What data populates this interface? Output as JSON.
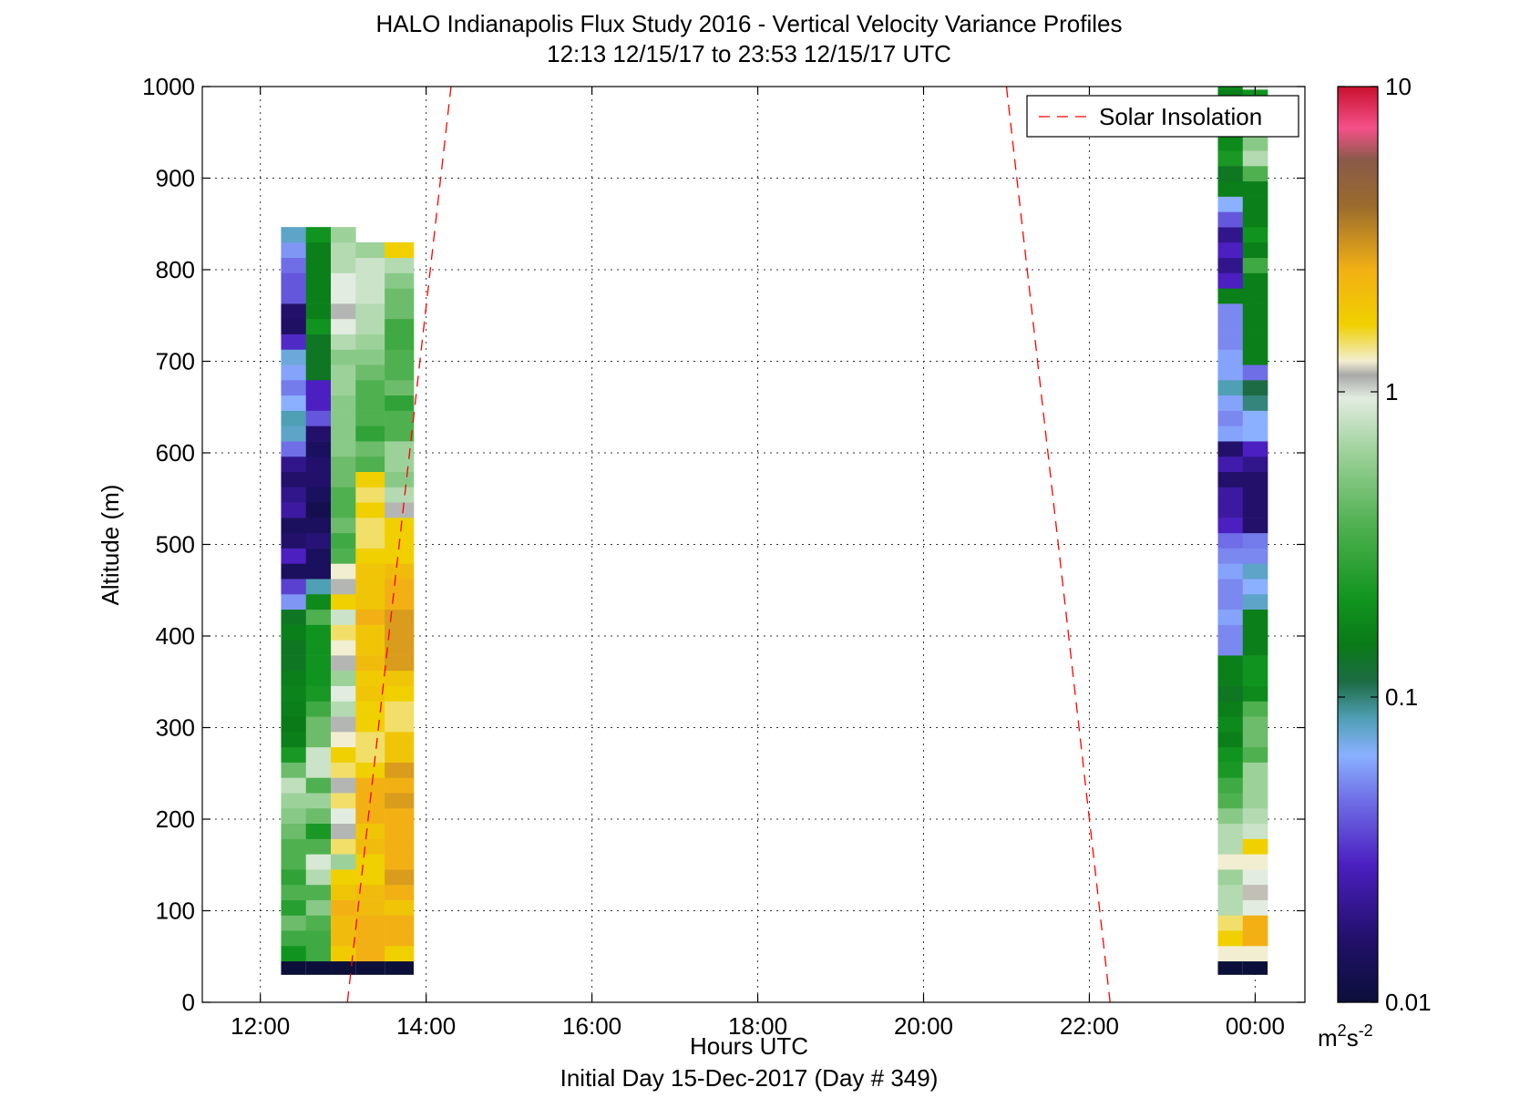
{
  "chart_data": {
    "type": "heatmap",
    "title": "HALO Indianapolis Flux Study 2016 - Vertical Velocity Variance Profiles",
    "subtitle": "12:13 12/15/17 to 23:53 12/15/17  UTC",
    "xlabel": "Hours UTC",
    "xlabel2": "Initial Day 15-Dec-2017 (Day # 349)",
    "ylabel": "Altitude (m)",
    "xlim": [
      11.3,
      24.6
    ],
    "ylim": [
      0,
      1000
    ],
    "x_ticks": [
      12,
      14,
      16,
      18,
      20,
      22,
      24
    ],
    "x_tick_labels": [
      "12:00",
      "14:00",
      "16:00",
      "18:00",
      "20:00",
      "22:00",
      "00:00"
    ],
    "y_ticks": [
      0,
      100,
      200,
      300,
      400,
      500,
      600,
      700,
      800,
      900,
      1000
    ],
    "y_tick_labels": [
      "0",
      "100",
      "200",
      "300",
      "400",
      "500",
      "600",
      "700",
      "800",
      "900",
      "1000"
    ],
    "grid": true,
    "legend": {
      "entries": [
        "Solar Insolation"
      ],
      "placement": "top-right"
    },
    "colorbar": {
      "scale": "log",
      "range": [
        0.01,
        10
      ],
      "ticks": [
        0.01,
        0.1,
        1,
        10
      ],
      "tick_labels": [
        "0.01",
        "0.1",
        "1",
        "10"
      ],
      "units_base": "m",
      "units_exp1": "2",
      "units_mid": "s",
      "units_exp2": "-2",
      "stops": [
        [
          0.0,
          "#0b0f3a"
        ],
        [
          0.07,
          "#22106b"
        ],
        [
          0.15,
          "#4b1fc0"
        ],
        [
          0.22,
          "#6f6ee6"
        ],
        [
          0.27,
          "#8ab0ff"
        ],
        [
          0.31,
          "#4f9fb5"
        ],
        [
          0.35,
          "#1d6b45"
        ],
        [
          0.39,
          "#0a7a18"
        ],
        [
          0.44,
          "#11941f"
        ],
        [
          0.52,
          "#4fb04f"
        ],
        [
          0.6,
          "#9dd19a"
        ],
        [
          0.66,
          "#e2ece0"
        ],
        [
          0.685,
          "#a8a8a8"
        ],
        [
          0.7,
          "#f2eed2"
        ],
        [
          0.74,
          "#f0d000"
        ],
        [
          0.8,
          "#f2b015"
        ],
        [
          0.87,
          "#9a6b2d"
        ],
        [
          0.92,
          "#8a5a4a"
        ],
        [
          0.955,
          "#f5508a"
        ],
        [
          1.0,
          "#c8102e"
        ]
      ]
    },
    "bin_height_m": 16.7,
    "bottom_bin": {
      "y_range": [
        30,
        45
      ],
      "color": "#0b0f3a"
    },
    "series": [
      {
        "x_start": 12.25,
        "x_end": 12.55,
        "levels": [
          0.44,
          0.5,
          0.55,
          0.47,
          0.52,
          0.48,
          0.52,
          0.52,
          0.55,
          0.58,
          0.6,
          0.63,
          0.55,
          0.45,
          0.4,
          0.39,
          0.4,
          0.41,
          0.4,
          0.38,
          0.38,
          0.4,
          0.38,
          0.25,
          0.18,
          0.05,
          0.15,
          0.07,
          0.05,
          0.12,
          0.1,
          0.07,
          0.1,
          0.22,
          0.3,
          0.31,
          0.27,
          0.23,
          0.26,
          0.29,
          0.16,
          0.06,
          0.07,
          0.2,
          0.2,
          0.22,
          0.25,
          0.3
        ]
      },
      {
        "x_start": 12.55,
        "x_end": 12.85,
        "levels": [
          0.5,
          0.5,
          0.52,
          0.58,
          0.52,
          0.62,
          0.65,
          0.52,
          0.45,
          0.55,
          0.6,
          0.52,
          0.64,
          0.64,
          0.55,
          0.55,
          0.5,
          0.45,
          0.44,
          0.44,
          0.44,
          0.44,
          0.52,
          0.42,
          0.31,
          0.05,
          0.05,
          0.08,
          0.05,
          0.03,
          0.05,
          0.07,
          0.07,
          0.05,
          0.07,
          0.2,
          0.15,
          0.15,
          0.38,
          0.38,
          0.38,
          0.44,
          0.4,
          0.4,
          0.4,
          0.4,
          0.4,
          0.44
        ]
      },
      {
        "x_start": 12.85,
        "x_end": 13.15,
        "levels": [
          0.75,
          0.78,
          0.78,
          0.8,
          0.76,
          0.74,
          0.6,
          0.72,
          0.68,
          0.66,
          0.72,
          0.68,
          0.72,
          0.74,
          0.7,
          0.68,
          0.62,
          0.66,
          0.6,
          0.68,
          0.7,
          0.72,
          0.64,
          0.74,
          0.68,
          0.7,
          0.52,
          0.5,
          0.55,
          0.52,
          0.52,
          0.55,
          0.55,
          0.58,
          0.58,
          0.58,
          0.58,
          0.6,
          0.6,
          0.58,
          0.62,
          0.66,
          0.68,
          0.66,
          0.66,
          0.62,
          0.62,
          0.6
        ]
      },
      {
        "x_start": 13.15,
        "x_end": 13.5,
        "levels": [
          0.8,
          0.8,
          0.8,
          0.78,
          0.78,
          0.74,
          0.74,
          0.78,
          0.76,
          0.8,
          0.8,
          0.8,
          0.74,
          0.72,
          0.72,
          0.74,
          0.74,
          0.76,
          0.75,
          0.78,
          0.76,
          0.76,
          0.8,
          0.76,
          0.76,
          0.76,
          0.74,
          0.72,
          0.72,
          0.74,
          0.72,
          0.74,
          0.52,
          0.55,
          0.48,
          0.52,
          0.52,
          0.52,
          0.55,
          0.58,
          0.6,
          0.62,
          0.62,
          0.64,
          0.64,
          0.64,
          0.6
        ]
      },
      {
        "x_start": 13.5,
        "x_end": 13.85,
        "levels": [
          0.74,
          0.8,
          0.8,
          0.76,
          0.8,
          0.82,
          0.8,
          0.8,
          0.8,
          0.8,
          0.82,
          0.8,
          0.82,
          0.76,
          0.76,
          0.72,
          0.72,
          0.74,
          0.76,
          0.82,
          0.82,
          0.82,
          0.82,
          0.8,
          0.8,
          0.78,
          0.74,
          0.74,
          0.74,
          0.68,
          0.62,
          0.58,
          0.6,
          0.6,
          0.52,
          0.52,
          0.48,
          0.55,
          0.52,
          0.52,
          0.5,
          0.5,
          0.55,
          0.55,
          0.58,
          0.62,
          0.74
        ]
      },
      {
        "x_start": 23.55,
        "x_end": 23.85,
        "levels": [
          0.7,
          0.74,
          0.72,
          0.62,
          0.62,
          0.6,
          0.7,
          0.62,
          0.62,
          0.58,
          0.52,
          0.5,
          0.45,
          0.44,
          0.4,
          0.42,
          0.4,
          0.38,
          0.4,
          0.4,
          0.24,
          0.24,
          0.26,
          0.24,
          0.24,
          0.26,
          0.24,
          0.22,
          0.15,
          0.12,
          0.12,
          0.07,
          0.13,
          0.07,
          0.26,
          0.24,
          0.26,
          0.31,
          0.26,
          0.26,
          0.24,
          0.24,
          0.24,
          0.4,
          0.15,
          0.1,
          0.15,
          0.1,
          0.2,
          0.27,
          0.4,
          0.38,
          0.45,
          0.42,
          0.4,
          0.38,
          0.4,
          0.42,
          0.6,
          0.4
        ]
      },
      {
        "x_start": 23.85,
        "x_end": 24.15,
        "levels": [
          0.7,
          0.8,
          0.8,
          0.66,
          0.69,
          0.66,
          0.7,
          0.74,
          0.64,
          0.62,
          0.6,
          0.6,
          0.6,
          0.52,
          0.55,
          0.55,
          0.52,
          0.42,
          0.44,
          0.44,
          0.4,
          0.4,
          0.4,
          0.3,
          0.27,
          0.3,
          0.24,
          0.23,
          0.07,
          0.07,
          0.07,
          0.07,
          0.1,
          0.15,
          0.27,
          0.27,
          0.33,
          0.35,
          0.22,
          0.4,
          0.4,
          0.4,
          0.4,
          0.4,
          0.4,
          0.5,
          0.4,
          0.44,
          0.4,
          0.4,
          0.4,
          0.52,
          0.62,
          0.58,
          0.62,
          0.4,
          0.44,
          0.66,
          0.8
        ]
      }
    ],
    "solar_insolation_lines": [
      {
        "x": [
          13.05,
          14.3
        ],
        "y": [
          0,
          1000
        ]
      },
      {
        "x": [
          21.0,
          22.25
        ],
        "y": [
          1000,
          0
        ]
      }
    ]
  }
}
